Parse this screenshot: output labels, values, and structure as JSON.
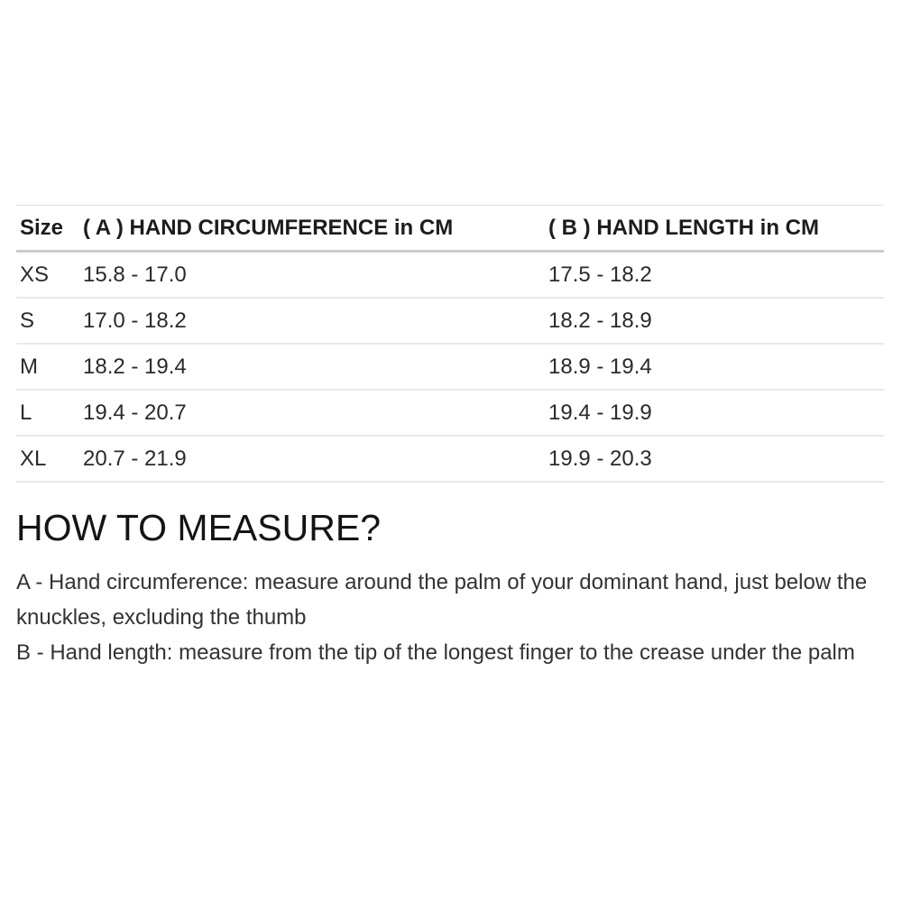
{
  "size_chart": {
    "headers": {
      "size": "Size",
      "circumference": "( A ) HAND CIRCUMFERENCE in CM",
      "length": "( B ) HAND LENGTH in CM"
    },
    "rows": [
      {
        "size": "XS",
        "circumference": "15.8 - 17.0",
        "length": "17.5 - 18.2"
      },
      {
        "size": "S",
        "circumference": "17.0 - 18.2",
        "length": "18.2 - 18.9"
      },
      {
        "size": "M",
        "circumference": "18.2 - 19.4",
        "length": "18.9 - 19.4"
      },
      {
        "size": "L",
        "circumference": "19.4 - 20.7",
        "length": "19.4 - 19.9"
      },
      {
        "size": "XL",
        "circumference": "20.7 - 21.9",
        "length": "19.9 - 20.3"
      }
    ]
  },
  "how_to_measure": {
    "heading": "HOW TO MEASURE?",
    "instruction_a": "A - Hand circumference: measure around the palm of your dominant hand, just below the knuckles, excluding the thumb",
    "instruction_b": "B - Hand length: measure from the tip of the longest finger to the crease under the palm"
  }
}
